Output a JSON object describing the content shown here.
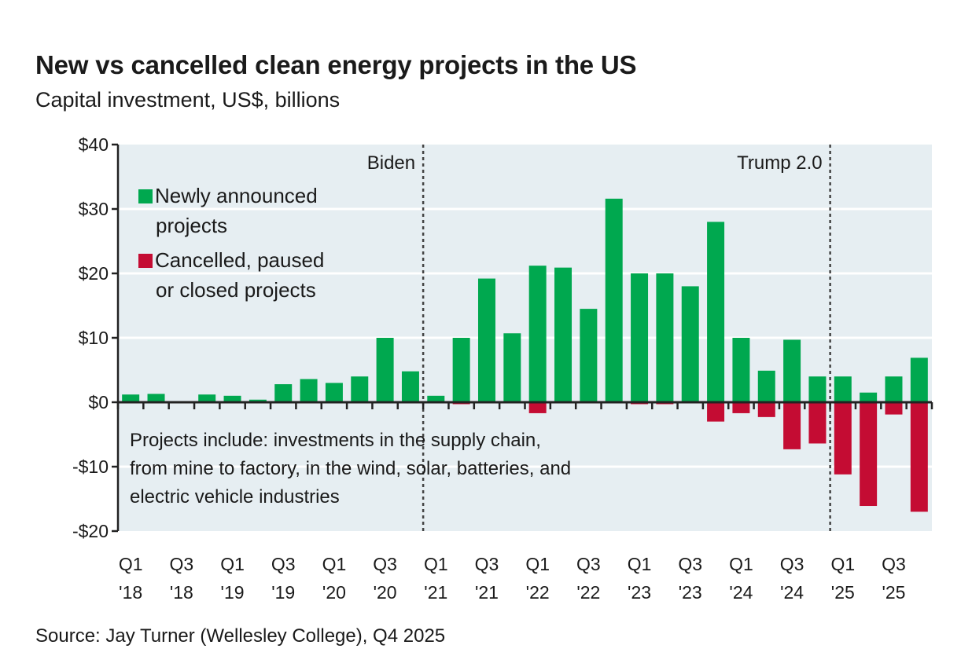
{
  "header": {
    "title": "New vs cancelled clean energy projects in the US",
    "subtitle": "Capital investment, US$, billions"
  },
  "footer": {
    "source": "Source: Jay Turner (Wellesley College), Q4 2025"
  },
  "colors": {
    "new": "#00a84f",
    "cancelled": "#c40c33",
    "plot_bg": "#e6eef2",
    "gridline": "#ffffff"
  },
  "chart_data": {
    "type": "bar",
    "title": "New vs cancelled clean energy projects in the US",
    "subtitle": "Capital investment, US$, billions",
    "xlabel": "",
    "ylabel": "",
    "ylim": [
      -20,
      40
    ],
    "yticks": [
      -20,
      -10,
      0,
      10,
      20,
      30,
      40
    ],
    "ytick_labels": [
      "-$20",
      "-$10",
      "$0",
      "$10",
      "$20",
      "$30",
      "$40"
    ],
    "grid": true,
    "legend_position": "top-left",
    "categories": [
      "Q1 '18",
      "Q2 '18",
      "Q3 '18",
      "Q4 '18",
      "Q1 '19",
      "Q2 '19",
      "Q3 '19",
      "Q4 '19",
      "Q1 '20",
      "Q2 '20",
      "Q3 '20",
      "Q4 '20",
      "Q1 '21",
      "Q2 '21",
      "Q3 '21",
      "Q4 '21",
      "Q1 '22",
      "Q2 '22",
      "Q3 '22",
      "Q4 '22",
      "Q1 '23",
      "Q2 '23",
      "Q3 '23",
      "Q4 '23",
      "Q1 '24",
      "Q2 '24",
      "Q3 '24",
      "Q4 '24",
      "Q1 '25",
      "Q2 '25",
      "Q3 '25",
      "Q4 '25"
    ],
    "xtick_labels": [
      {
        "index": 0,
        "line1": "Q1",
        "line2": "'18"
      },
      {
        "index": 2,
        "line1": "Q3",
        "line2": "'18"
      },
      {
        "index": 4,
        "line1": "Q1",
        "line2": "'19"
      },
      {
        "index": 6,
        "line1": "Q3",
        "line2": "'19"
      },
      {
        "index": 8,
        "line1": "Q1",
        "line2": "'20"
      },
      {
        "index": 10,
        "line1": "Q3",
        "line2": "'20"
      },
      {
        "index": 12,
        "line1": "Q1",
        "line2": "'21"
      },
      {
        "index": 14,
        "line1": "Q3",
        "line2": "'21"
      },
      {
        "index": 16,
        "line1": "Q1",
        "line2": "'22"
      },
      {
        "index": 18,
        "line1": "Q3",
        "line2": "'22"
      },
      {
        "index": 20,
        "line1": "Q1",
        "line2": "'23"
      },
      {
        "index": 22,
        "line1": "Q3",
        "line2": "'23"
      },
      {
        "index": 24,
        "line1": "Q1",
        "line2": "'24"
      },
      {
        "index": 26,
        "line1": "Q3",
        "line2": "'24"
      },
      {
        "index": 28,
        "line1": "Q1",
        "line2": "'25"
      },
      {
        "index": 30,
        "line1": "Q3",
        "line2": "'25"
      }
    ],
    "series": [
      {
        "name": "Newly announced projects",
        "legend_lines": [
          "Newly announced",
          "projects"
        ],
        "color": "#00a84f",
        "values": [
          1.2,
          1.3,
          0,
          1.2,
          1.0,
          0.4,
          2.8,
          3.6,
          3.0,
          4.0,
          10.0,
          4.8,
          1.0,
          10.0,
          19.2,
          10.7,
          21.2,
          20.9,
          14.5,
          31.6,
          20.0,
          20.0,
          18.0,
          28.0,
          10.0,
          4.9,
          9.7,
          4.0,
          4.0,
          1.5,
          4.0,
          6.9
        ]
      },
      {
        "name": "Cancelled, paused or closed projects",
        "legend_lines": [
          "Cancelled, paused",
          "or closed projects"
        ],
        "color": "#c40c33",
        "values": [
          0,
          0,
          0,
          0,
          0,
          0,
          0,
          0,
          0,
          0,
          0,
          0,
          0,
          -0.3,
          0,
          0,
          -1.7,
          0,
          0,
          0,
          -0.3,
          -0.3,
          0,
          -3.0,
          -1.7,
          -2.3,
          -7.3,
          -6.4,
          -11.2,
          -16.1,
          -1.9,
          -17.0
        ]
      }
    ],
    "annotations": [
      {
        "type": "vline",
        "label": "Biden",
        "before_index": 12
      },
      {
        "type": "vline",
        "label": "Trump 2.0",
        "before_index": 28
      },
      {
        "type": "note",
        "lines": [
          "Projects include: investments in the supply chain,",
          "from mine to factory, in the wind, solar, batteries, and",
          "electric vehicle industries"
        ]
      }
    ]
  }
}
